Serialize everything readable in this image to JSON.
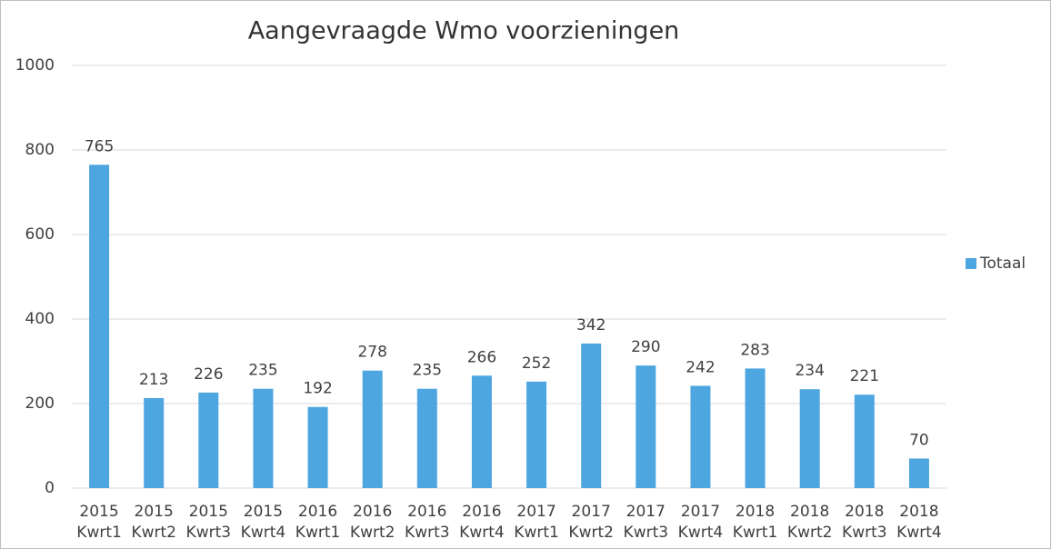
{
  "chart_data": {
    "type": "bar",
    "title": "Aangevraagde Wmo voorzieningen",
    "categories": [
      [
        "2015",
        "Kwrt1"
      ],
      [
        "2015",
        "Kwrt2"
      ],
      [
        "2015",
        "Kwrt3"
      ],
      [
        "2015",
        "Kwrt4"
      ],
      [
        "2016",
        "Kwrt1"
      ],
      [
        "2016",
        "Kwrt2"
      ],
      [
        "2016",
        "Kwrt3"
      ],
      [
        "2016",
        "Kwrt4"
      ],
      [
        "2017",
        "Kwrt1"
      ],
      [
        "2017",
        "Kwrt2"
      ],
      [
        "2017",
        "Kwrt3"
      ],
      [
        "2017",
        "Kwrt4"
      ],
      [
        "2018",
        "Kwrt1"
      ],
      [
        "2018",
        "Kwrt2"
      ],
      [
        "2018",
        "Kwrt3"
      ],
      [
        "2018",
        "Kwrt4"
      ]
    ],
    "series": [
      {
        "name": "Totaal",
        "color": "#4ea6e0",
        "values": [
          765,
          213,
          226,
          235,
          192,
          278,
          235,
          266,
          252,
          342,
          290,
          242,
          283,
          234,
          221,
          70
        ]
      }
    ],
    "ylim": [
      0,
      1000
    ],
    "yticks": [
      0,
      200,
      400,
      600,
      800,
      1000
    ],
    "grid": true,
    "legend": "right"
  }
}
